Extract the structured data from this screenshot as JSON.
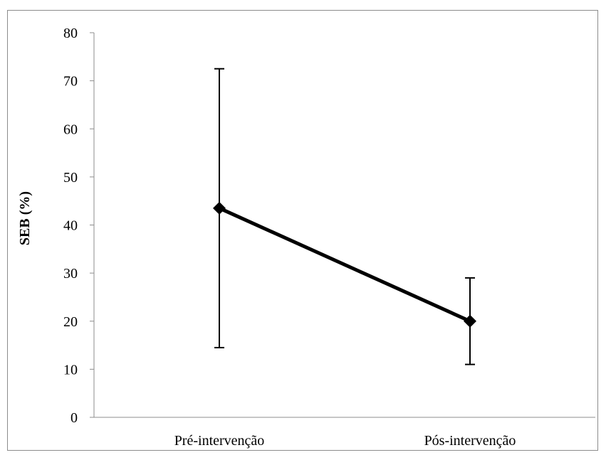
{
  "chart_data": {
    "type": "line",
    "title": "",
    "xlabel": "",
    "ylabel": "SEB (%)",
    "ylim": [
      0,
      80
    ],
    "yticks": [
      0,
      10,
      20,
      30,
      40,
      50,
      60,
      70,
      80
    ],
    "grid": false,
    "legend": "none",
    "categories": [
      "Pré-intervenção",
      "Pós-intervenção"
    ],
    "series": [
      {
        "values": [
          43.5,
          20.0
        ],
        "error_low": [
          14.5,
          11.0
        ],
        "error_high": [
          72.5,
          29.0
        ],
        "marker": "diamond",
        "color": "#000000"
      }
    ],
    "annotations": [
      {
        "text": "*",
        "x": 1.56,
        "y": 69
      }
    ]
  }
}
